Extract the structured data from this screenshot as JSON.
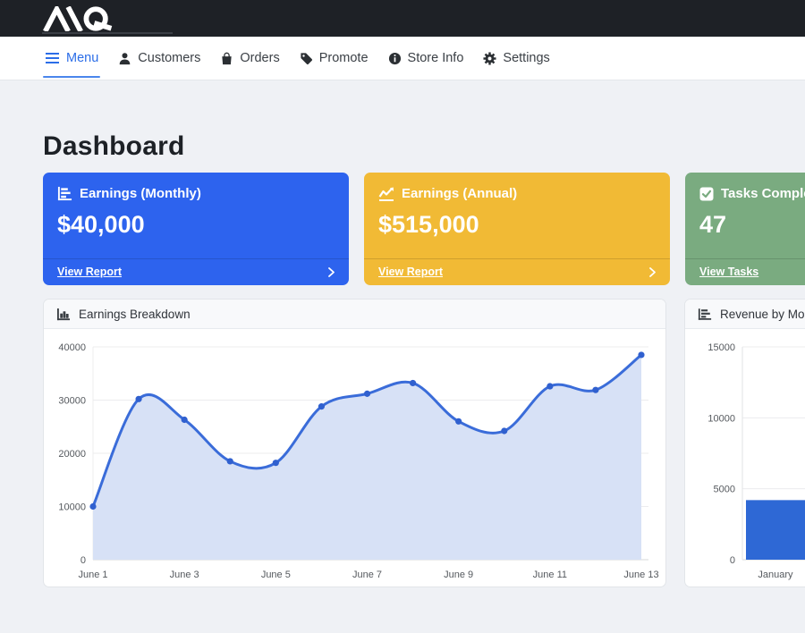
{
  "topbar": {
    "logo": "MQ"
  },
  "nav": {
    "items": [
      {
        "label": "Menu",
        "icon": "hamburger-icon",
        "active": true
      },
      {
        "label": "Customers",
        "icon": "person-icon",
        "active": false
      },
      {
        "label": "Orders",
        "icon": "bag-icon",
        "active": false
      },
      {
        "label": "Promote",
        "icon": "tag-icon",
        "active": false
      },
      {
        "label": "Store Info",
        "icon": "info-icon",
        "active": false
      },
      {
        "label": "Settings",
        "icon": "gear-icon",
        "active": false
      }
    ]
  },
  "page": {
    "title": "Dashboard"
  },
  "stat_cards": [
    {
      "title": "Earnings (Monthly)",
      "value": "$40,000",
      "link": "View Report",
      "color": "#2d63ee",
      "icon": "bar-chart-icon"
    },
    {
      "title": "Earnings (Annual)",
      "value": "$515,000",
      "link": "View Report",
      "color": "#f1ba35",
      "icon": "line-chart-icon"
    },
    {
      "title": "Tasks Completed",
      "value": "47",
      "link": "View Tasks",
      "color": "#7aab80",
      "icon": "check-square-icon"
    }
  ],
  "chart_data": [
    {
      "type": "area",
      "title": "Earnings Breakdown",
      "x": [
        "June 1",
        "June 2",
        "June 3",
        "June 4",
        "June 5",
        "June 6",
        "June 7",
        "June 8",
        "June 9",
        "June 10",
        "June 11",
        "June 12",
        "June 13"
      ],
      "values": [
        10000,
        30200,
        26300,
        18500,
        18200,
        28800,
        31200,
        33200,
        26000,
        24200,
        32600,
        31900,
        38500
      ],
      "x_ticks_every": 2,
      "ylim": [
        0,
        40000
      ],
      "y_ticks": [
        0,
        10000,
        20000,
        30000,
        40000
      ],
      "line_color": "#3a6cd9",
      "point_color": "#3060cf",
      "fill_color": "#d7e1f6",
      "grid": true,
      "legend": "none"
    },
    {
      "type": "bar",
      "title": "Revenue by Month",
      "categories": [
        "January"
      ],
      "values": [
        4200
      ],
      "ylim": [
        0,
        15000
      ],
      "y_ticks": [
        0,
        5000,
        10000,
        15000
      ],
      "bar_color": "#2e68d5",
      "grid": true,
      "legend": "none"
    }
  ]
}
